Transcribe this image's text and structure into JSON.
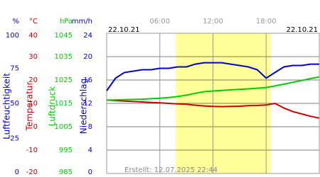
{
  "chart_data": {
    "type": "line",
    "date_left": "22.10.21",
    "date_right": "22.10.21",
    "footer": "Erstellt: 12.07.2025 22:44",
    "xlim": [
      0,
      24
    ],
    "xticks": [
      {
        "value": 6,
        "label": "06:00"
      },
      {
        "value": 12,
        "label": "12:00"
      },
      {
        "value": 18,
        "label": "18:00"
      }
    ],
    "daylight": [
      7.8,
      18.5
    ],
    "axes": [
      {
        "unit": "%",
        "title": "Luftfeuchtigkeit",
        "color": "#0000cc",
        "ylim": [
          0,
          100
        ],
        "yticks": [
          0,
          25,
          50,
          75,
          100
        ]
      },
      {
        "unit": "°C",
        "title": "Temperatur",
        "color": "#cc0000",
        "ylim": [
          -20,
          40
        ],
        "yticks": [
          -20,
          -10,
          0,
          10,
          20,
          30,
          40
        ]
      },
      {
        "unit": "hPa",
        "title": "Luftdruck",
        "color": "#00cc00",
        "ylim": [
          985,
          1045
        ],
        "yticks": [
          985,
          995,
          1005,
          1015,
          1025,
          1035,
          1045
        ]
      },
      {
        "unit": "mm/h",
        "title": "Niederschlag",
        "color": "#0000cc",
        "ylim": [
          0,
          24
        ],
        "yticks": [
          0,
          4,
          8,
          12,
          16,
          20,
          24
        ]
      }
    ],
    "x": [
      0,
      1,
      2,
      3,
      4,
      5,
      6,
      7,
      8,
      9,
      10,
      11,
      12,
      13,
      14,
      15,
      16,
      17,
      18,
      19,
      20,
      21,
      22,
      23,
      24
    ],
    "series": [
      {
        "name": "Luftfeuchtigkeit",
        "color": "#0000cc",
        "axis": 0,
        "values": [
          59,
          68,
          72,
          73,
          74,
          74,
          75,
          75,
          76,
          76,
          78,
          79,
          79,
          79,
          78,
          77,
          76,
          74,
          68,
          72,
          76,
          77,
          77,
          78,
          78
        ]
      },
      {
        "name": "Temperatur",
        "color": "#cc0000",
        "axis": 1,
        "values": [
          11.4,
          11.2,
          11.0,
          10.8,
          10.6,
          10.4,
          10.2,
          10.0,
          9.8,
          9.6,
          9.2,
          8.9,
          8.7,
          8.6,
          8.7,
          8.8,
          9.0,
          9.1,
          9.3,
          10.0,
          8.0,
          6.5,
          5.5,
          4.5,
          3.7
        ]
      },
      {
        "name": "Luftdruck",
        "color": "#00cc00",
        "axis": 2,
        "values": [
          1016.4,
          1016.5,
          1016.6,
          1016.7,
          1016.8,
          1017.0,
          1017.2,
          1017.5,
          1017.9,
          1018.5,
          1019.3,
          1020.0,
          1020.3,
          1020.5,
          1020.8,
          1021.0,
          1021.2,
          1021.5,
          1021.8,
          1022.5,
          1023.2,
          1024.0,
          1024.8,
          1025.6,
          1026.3
        ]
      }
    ]
  }
}
